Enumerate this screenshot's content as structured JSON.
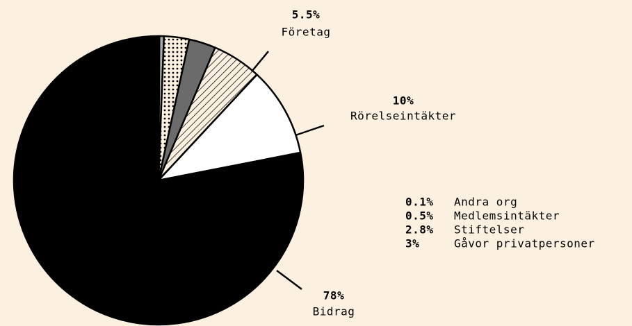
{
  "chart_data": {
    "type": "pie",
    "categories": [
      "Andra org",
      "Medlemsintäkter",
      "Stiftelser",
      "Gåvor privatpersoner",
      "Företag",
      "Rörelseintäkter",
      "Bidrag"
    ],
    "values": [
      0.1,
      0.5,
      2.8,
      3,
      5.5,
      10,
      78
    ],
    "value_labels": [
      "0.1%",
      "0.5%",
      "2.8%",
      "3%",
      "5.5%",
      "10%",
      "78%"
    ],
    "fills": [
      "#555555",
      "#aaaaaa",
      "dots",
      "#6b6b6b",
      "hatch",
      "#ffffff",
      "#000000"
    ]
  }
}
